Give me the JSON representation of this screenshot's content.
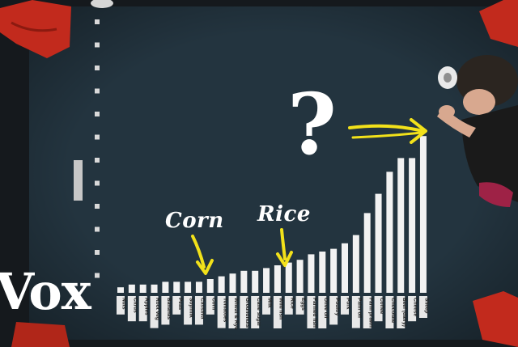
{
  "brand": {
    "logo_text": "Vox"
  },
  "annotations": {
    "corn": "Corn",
    "rice": "Rice",
    "question": "?"
  },
  "colors": {
    "background_board": "#23343f",
    "bars": "#f2f2f2",
    "highlight_arrows": "#f2e11a",
    "bags": "#c22a1d"
  },
  "foods": [
    "Nuts",
    "Citrus",
    "Apples",
    "Root veg",
    "Bananas",
    "Peas",
    "Soymilk",
    "Cassava",
    "Corn",
    "Tomatoes",
    "Wheat & Rye",
    "Groundnuts",
    "Cane sugar",
    "Milk",
    "Wild fish",
    "Rice",
    "Eggs",
    "Farmed fish",
    "Olive oil",
    "Poultry",
    "Pork",
    "Palm oil",
    "Farm prawn",
    "Coffee",
    "Chocolate",
    "Beef (dairy)",
    "Cheese",
    "Sheep"
  ],
  "bar_levels": [
    0.02,
    0.03,
    0.03,
    0.03,
    0.04,
    0.04,
    0.04,
    0.04,
    0.05,
    0.06,
    0.07,
    0.08,
    0.08,
    0.09,
    0.1,
    0.11,
    0.12,
    0.14,
    0.15,
    0.16,
    0.18,
    0.21,
    0.29,
    0.36,
    0.44,
    0.49,
    0.49,
    0.57
  ]
}
